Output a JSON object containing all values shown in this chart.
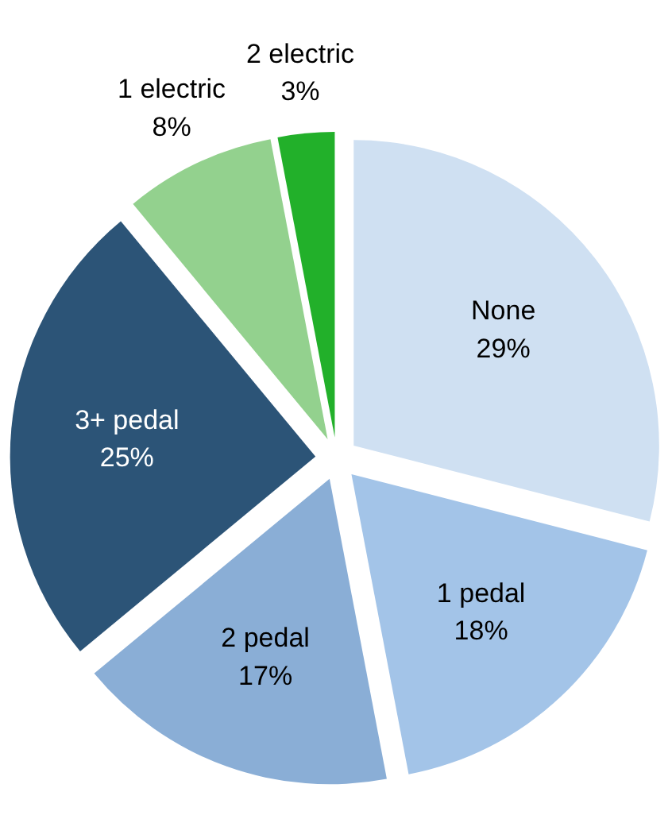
{
  "chart_data": {
    "type": "pie",
    "categories": [
      "None",
      "1 pedal",
      "2 pedal",
      "3+ pedal",
      "1 electric",
      "2 electric"
    ],
    "values": [
      29,
      18,
      17,
      25,
      8,
      3
    ],
    "colors": [
      "#cfe0f2",
      "#a3c4e8",
      "#8aaed6",
      "#2c5477",
      "#93d18e",
      "#22b02a"
    ],
    "value_labels": [
      "29%",
      "18%",
      "17%",
      "25%",
      "8%",
      "3%"
    ],
    "legend": false
  }
}
